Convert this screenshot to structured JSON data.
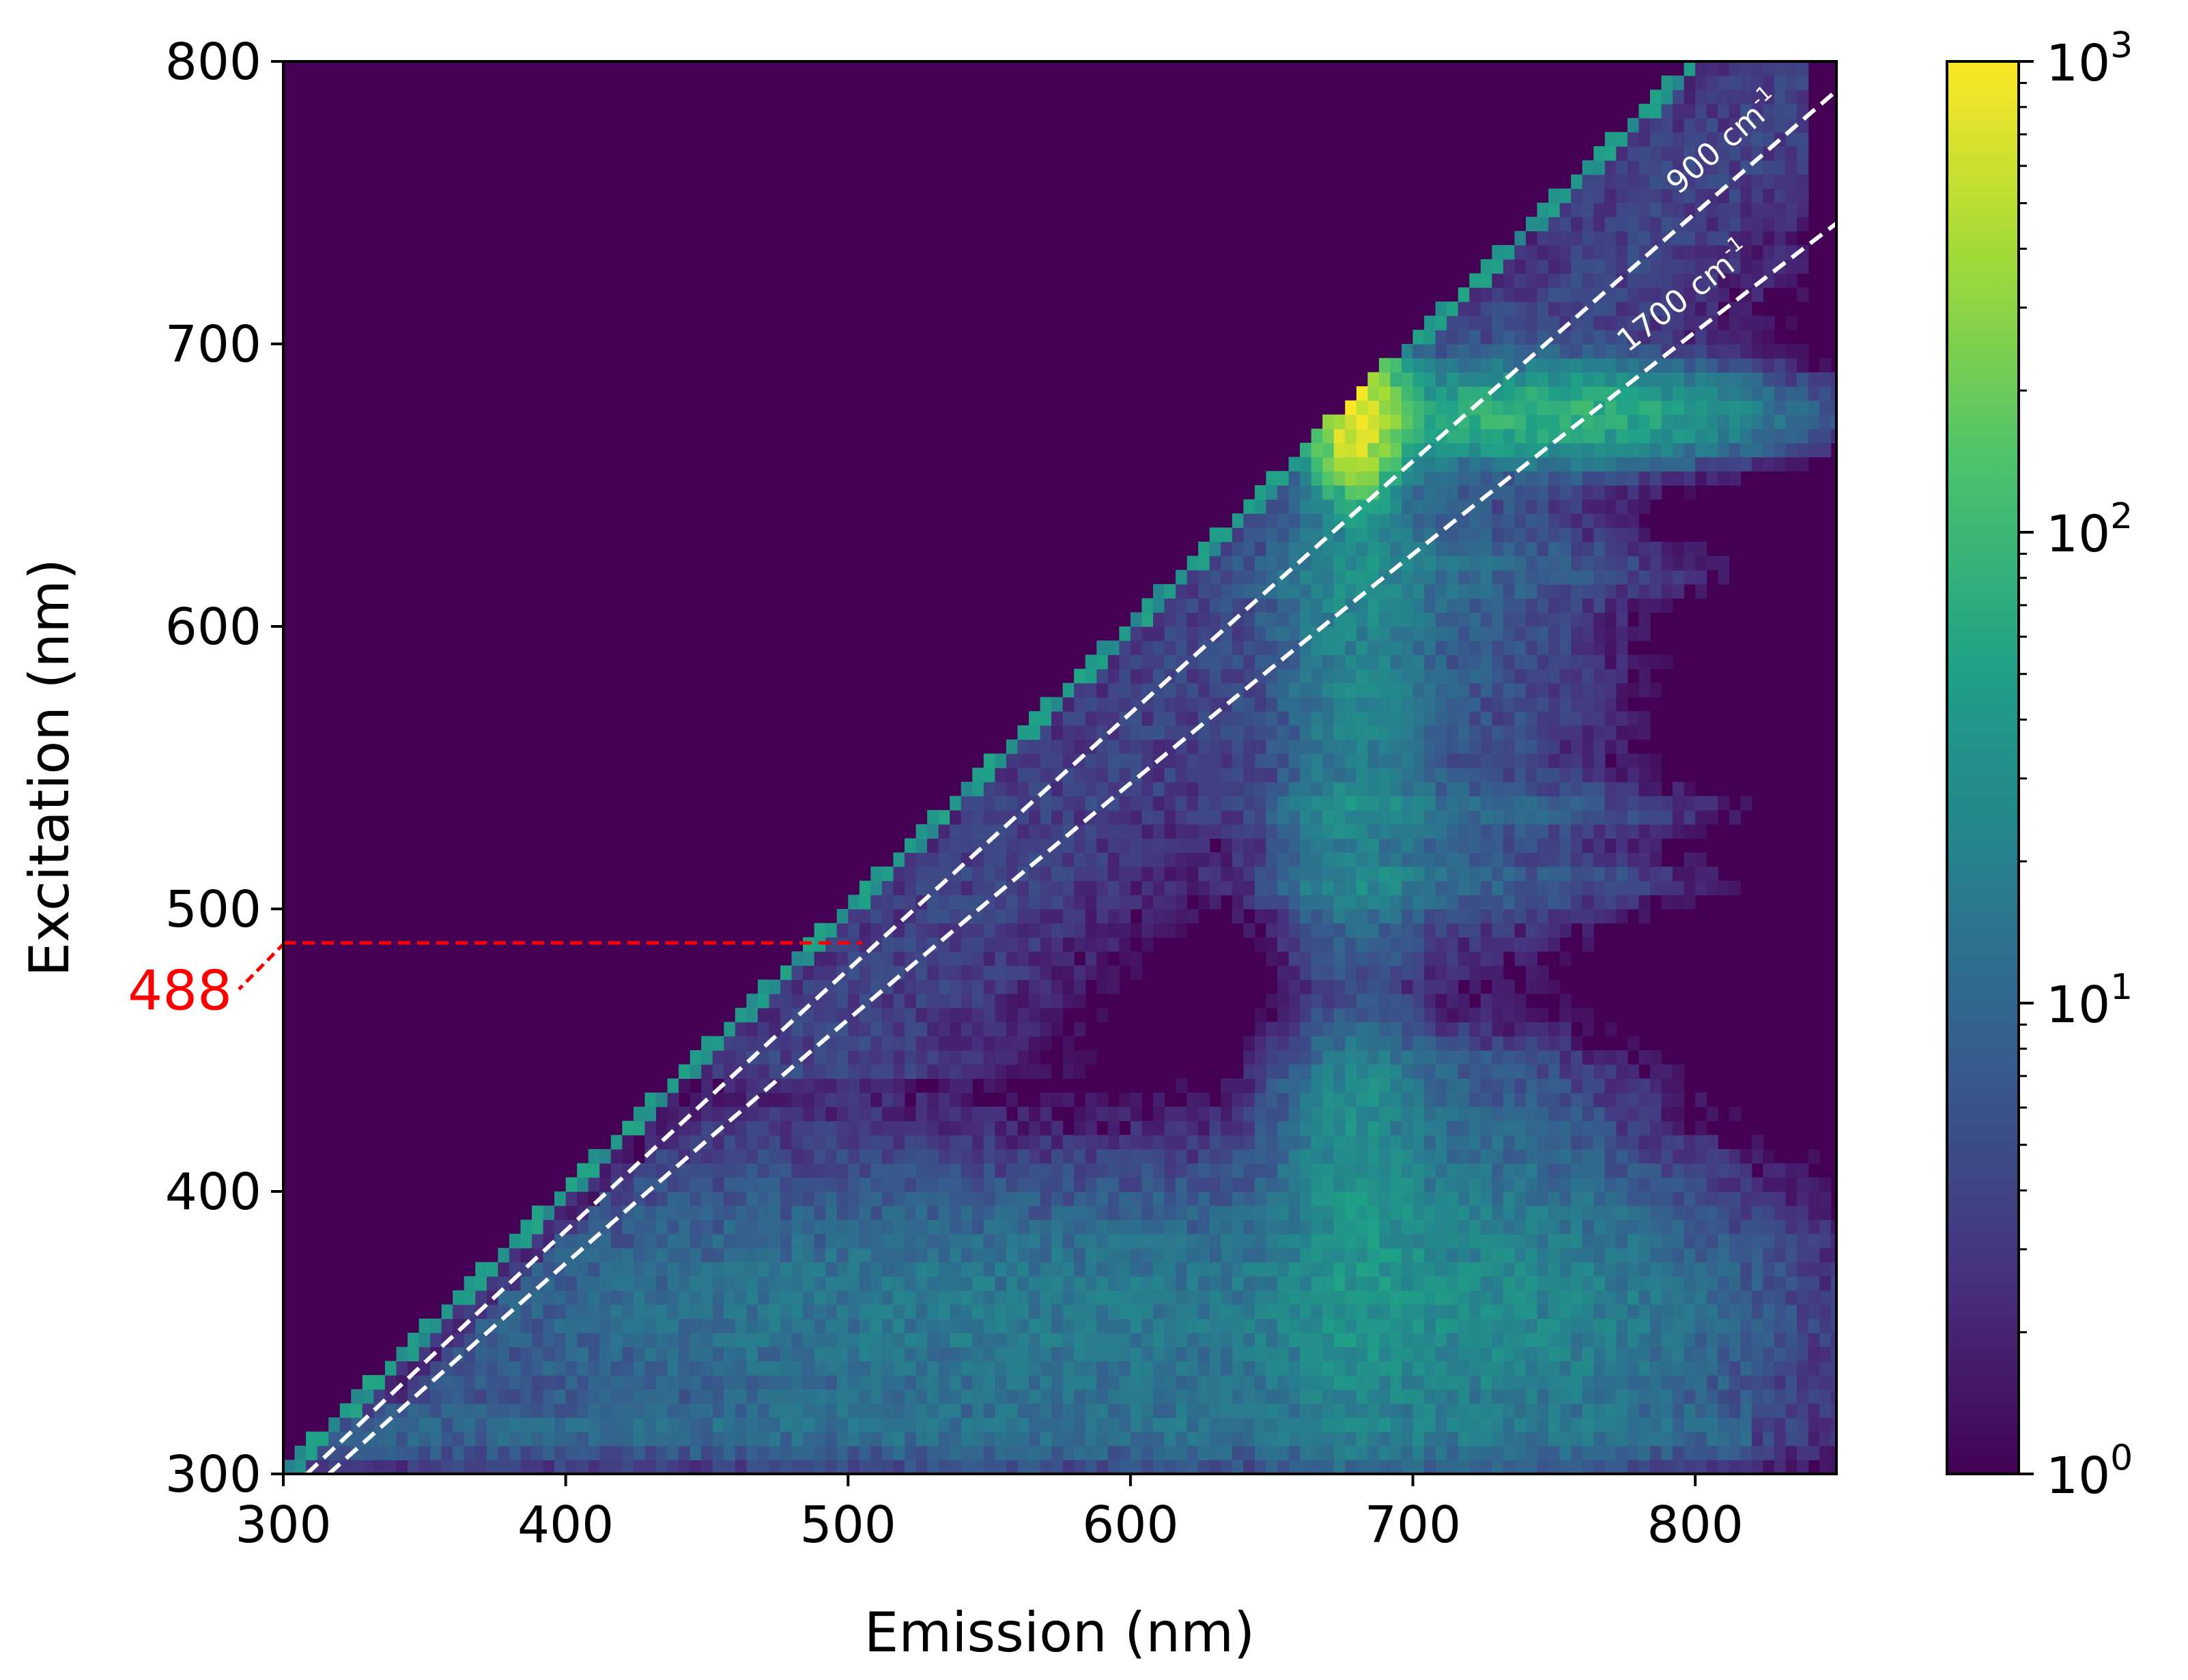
{
  "chart_data": {
    "type": "heatmap",
    "title": "",
    "xlabel": "Emission (nm)",
    "ylabel": "Excitation (nm)",
    "xlim": [
      300,
      850
    ],
    "ylim": [
      300,
      800
    ],
    "xticks": [
      300,
      400,
      500,
      600,
      700,
      800
    ],
    "yticks": [
      300,
      400,
      500,
      600,
      700,
      800
    ],
    "grid": false,
    "colormap": "viridis",
    "colorbar": {
      "scale": "log",
      "range": [
        1,
        1000
      ],
      "ticks": [
        {
          "value": 1,
          "base": "10",
          "exp": "0"
        },
        {
          "value": 10,
          "base": "10",
          "exp": "1"
        },
        {
          "value": 100,
          "base": "10",
          "exp": "2"
        },
        {
          "value": 1000,
          "base": "10",
          "exp": "3"
        }
      ]
    },
    "features": [
      {
        "name": "elastic scatter diagonal",
        "relation": "emission = excitation",
        "level": 40
      },
      {
        "name": "chlorophyll emission band",
        "emission_center": 680,
        "excitation_range": [
          300,
          690
        ],
        "peak_excitation": 675,
        "peak_level": 900
      },
      {
        "name": "broad blue excitation band",
        "emission_range": [
          330,
          800
        ],
        "excitation_range": [
          300,
          420
        ],
        "level": 20
      },
      {
        "name": "horizontal excitation streaks",
        "excitation_values": [
          315,
          510,
          535,
          620,
          675
        ]
      }
    ],
    "raman_lines": [
      {
        "label_number": "900",
        "label_unit": "cm",
        "label_exp": "-1",
        "shift_cm": 900
      },
      {
        "label_number": "1700",
        "label_unit": "cm",
        "label_exp": "-1",
        "shift_cm": 1700
      }
    ],
    "laser_line": {
      "excitation": 488,
      "label": "488",
      "color": "#ff0000",
      "emission_end": 505
    }
  }
}
